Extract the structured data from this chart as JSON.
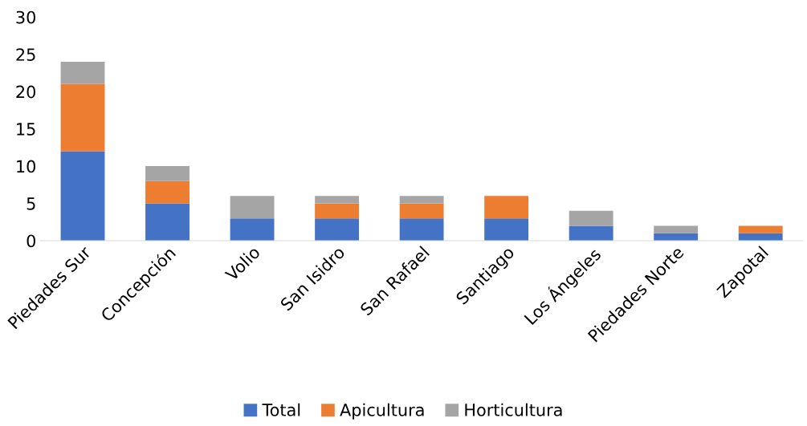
{
  "chart_data": {
    "type": "bar",
    "stacked": true,
    "categories": [
      "Piedades Sur",
      "Concepción",
      "Volio",
      "San Isidro",
      "San Rafael",
      "Santiago",
      "Los Ángeles",
      "Piedades Norte",
      "Zapotal"
    ],
    "series": [
      {
        "name": "Total",
        "color": "#4472c4",
        "values": [
          12,
          5,
          3,
          3,
          3,
          3,
          2,
          1,
          1
        ]
      },
      {
        "name": "Apicultura",
        "color": "#ed7d31",
        "values": [
          9,
          3,
          0,
          2,
          2,
          3,
          0,
          0,
          1
        ]
      },
      {
        "name": "Horticultura",
        "color": "#a5a5a5",
        "values": [
          3,
          2,
          3,
          1,
          1,
          0,
          2,
          1,
          0
        ]
      }
    ],
    "ylim": [
      0,
      30
    ],
    "yticks": [
      0,
      5,
      10,
      15,
      20,
      25,
      30
    ],
    "grid": false,
    "legend": "bottom"
  }
}
